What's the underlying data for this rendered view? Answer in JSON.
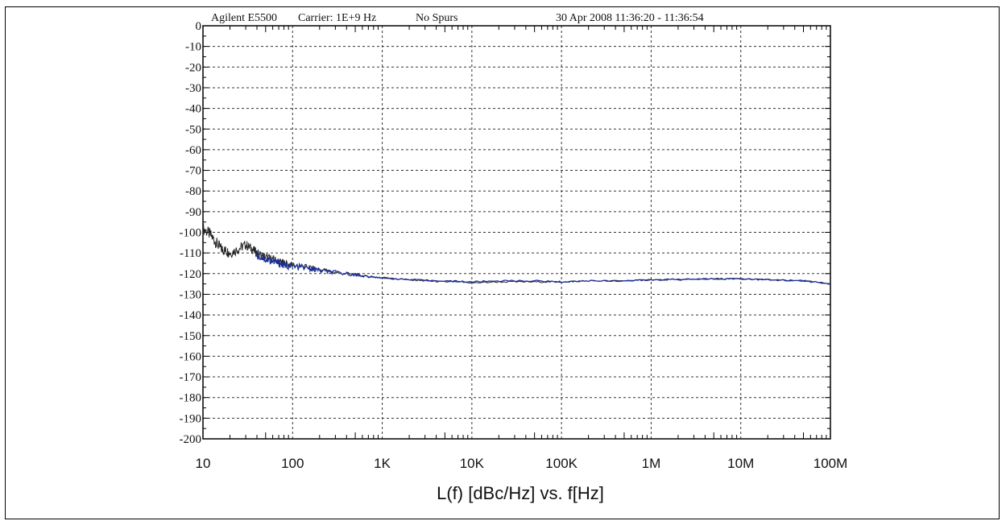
{
  "header": {
    "instrument": "Agilent E5500",
    "carrier": "Carrier: 1E+9 Hz",
    "spurs": "No Spurs",
    "timestamp": "30 Apr 2008  11:36:20 - 11:36:54"
  },
  "colors": {
    "trace_black": "#222222",
    "trace_blue": "#1a2f9c",
    "grid": "#333333",
    "axis": "#000000"
  },
  "chart_data": {
    "type": "line",
    "title": "",
    "xlabel": "L(f) [dBc/Hz] vs. f[Hz]",
    "ylabel": "",
    "x_scale": "log",
    "xlim": [
      10,
      100000000
    ],
    "ylim": [
      -200,
      0
    ],
    "grid": true,
    "x_tick_values": [
      10,
      100,
      1000,
      10000,
      100000,
      1000000,
      10000000,
      100000000
    ],
    "x_tick_labels": [
      "10",
      "100",
      "1K",
      "10K",
      "100K",
      "1M",
      "10M",
      "100M"
    ],
    "y_tick_values": [
      0,
      -10,
      -20,
      -30,
      -40,
      -50,
      -60,
      -70,
      -80,
      -90,
      -100,
      -110,
      -120,
      -130,
      -140,
      -150,
      -160,
      -170,
      -180,
      -190,
      -200
    ],
    "y_tick_labels": [
      "0",
      "-10",
      "-20",
      "-30",
      "-40",
      "-50",
      "-60",
      "-70",
      "-80",
      "-90",
      "-100",
      "-110",
      "-120",
      "-130",
      "-140",
      "-150",
      "-160",
      "-170",
      "-180",
      "-190",
      "-200"
    ],
    "series": [
      {
        "color": "#222222",
        "x": [
          10,
          12,
          14,
          16,
          18,
          20,
          25,
          30,
          35,
          40,
          50,
          60,
          70,
          80,
          100,
          150,
          200,
          300,
          500,
          700,
          1000,
          2000,
          3000,
          5000,
          7000,
          10000,
          20000,
          50000,
          100000,
          200000,
          500000,
          1000000,
          2000000,
          5000000,
          10000000,
          20000000,
          50000000,
          100000000
        ],
        "y": [
          -98,
          -101,
          -105,
          -108,
          -109,
          -110,
          -108,
          -106,
          -108,
          -110,
          -112,
          -113,
          -114,
          -115,
          -116,
          -117,
          -118,
          -119.5,
          -120.5,
          -121.5,
          -122,
          -123,
          -123.5,
          -124,
          -124,
          -124.5,
          -124,
          -124,
          -124,
          -123.5,
          -123.5,
          -123,
          -123,
          -122.5,
          -122.5,
          -123,
          -123.5,
          -125
        ]
      },
      {
        "color": "#1a2f9c",
        "x": [
          40,
          50,
          60,
          70,
          80,
          100,
          150,
          200,
          300,
          500,
          700,
          1000,
          2000,
          5000,
          10000,
          20000,
          50000,
          100000,
          200000,
          500000,
          1000000,
          2000000,
          5000000,
          10000000,
          20000000,
          50000000,
          100000000
        ],
        "y": [
          -111,
          -113,
          -114,
          -115,
          -116,
          -116.5,
          -117.5,
          -118.5,
          -119.5,
          -120.5,
          -121.5,
          -122,
          -123,
          -123.5,
          -124,
          -123.5,
          -123.5,
          -124,
          -123.5,
          -123.5,
          -123,
          -122.8,
          -122.5,
          -122.5,
          -123,
          -123.5,
          -125
        ]
      }
    ]
  }
}
